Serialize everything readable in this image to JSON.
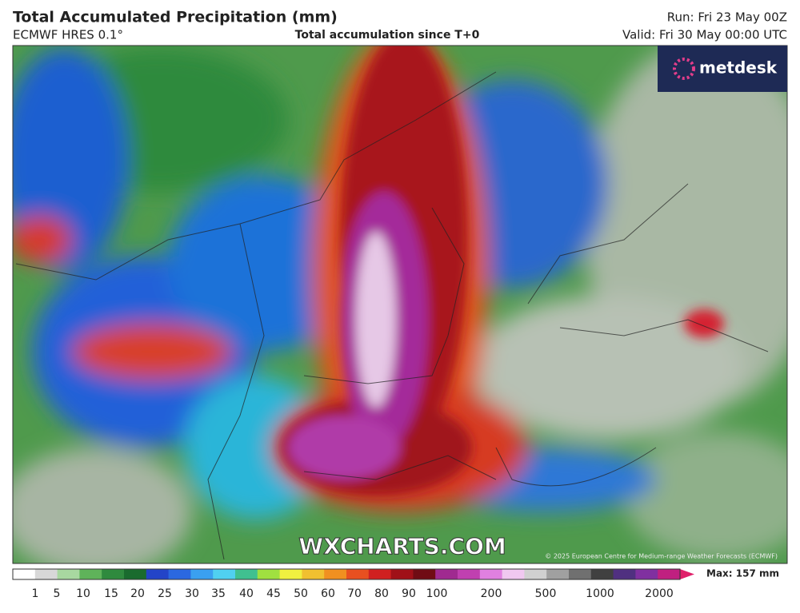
{
  "header": {
    "title": "Total Accumulated Precipitation (mm)",
    "model": "ECMWF HRES 0.1°",
    "subtitle": "Total accumulation since T+0",
    "run": "Run: Fri 23 May 00Z",
    "valid": "Valid: Fri 30 May 00:00 UTC"
  },
  "logo": "metdesk",
  "watermark": "WXCHARTS.COM",
  "copyright": "© 2025 European Centre for Medium-range Weather Forecasts (ECMWF)",
  "legend": {
    "max": "Max: 157 mm",
    "labels": [
      "1",
      "5",
      "10",
      "15",
      "20",
      "25",
      "30",
      "35",
      "40",
      "45",
      "50",
      "60",
      "70",
      "80",
      "90",
      "100",
      "200",
      "500",
      "1000",
      "2000"
    ]
  }
}
